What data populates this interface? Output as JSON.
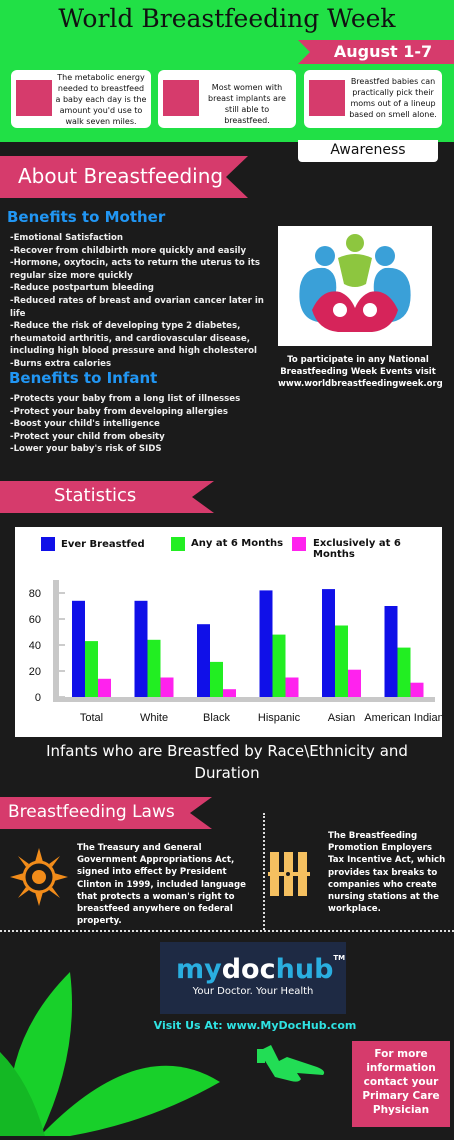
{
  "header": {
    "title": "World Breastfeeding Week",
    "date": "August 1-7"
  },
  "facts": [
    {
      "text": "The metabolic energy needed to breastfeed a baby each day is the amount you'd use to walk seven miles."
    },
    {
      "text": "Most women with breast implants are still able to breastfeed."
    },
    {
      "text": "Breastfed babies can practically pick their moms out of a lineup based on smell alone."
    }
  ],
  "awareness": "Awareness",
  "about": {
    "heading": "About Breastfeeding",
    "mother_heading": "Benefits to Mother",
    "mother_items": [
      "-Emotional Satisfaction",
      "-Recover from childbirth more quickly and easily",
      "-Hormone, oxytocin, acts to return the uterus to its regular size more quickly",
      "-Reduce postpartum bleeding",
      "-Reduced rates of breast and ovarian cancer later in life",
      "-Reduce the risk of developing type 2 diabetes, rheumatoid arthritis, and cardiovascular disease, including high blood pressure and high cholesterol",
      "-Burns extra calories"
    ],
    "infant_heading": "Benefits to Infant",
    "infant_items": [
      "-Protects your baby from a long list of illnesses",
      "-Protect your baby from developing allergies",
      "-Boost your child's intelligence",
      "-Protect your child from obesity",
      "-Lower your baby's risk of SIDS"
    ],
    "participate": "To participate in any National Breastfeeding Week Events visit www.worldbreastfeedingweek.org"
  },
  "statistics": {
    "heading": "Statistics",
    "caption": "Infants who are Breastfed by Race\\Ethnicity and Duration"
  },
  "chart_data": {
    "type": "bar",
    "categories": [
      "Total",
      "White",
      "Black",
      "Hispanic",
      "Asian",
      "American Indian"
    ],
    "series": [
      {
        "name": "Ever Breastfed",
        "color": "#1010e8",
        "values": [
          74,
          74,
          56,
          82,
          83,
          70
        ]
      },
      {
        "name": "Any at 6 Months",
        "color": "#22ee22",
        "values": [
          43,
          44,
          27,
          48,
          55,
          38
        ]
      },
      {
        "name": "Exclusively at 6 Months",
        "color": "#ff22ee",
        "values": [
          14,
          15,
          6,
          15,
          21,
          11
        ]
      }
    ],
    "yticks": [
      "0",
      "20",
      "40",
      "60",
      "80"
    ],
    "ylim": [
      0,
      90
    ],
    "legend": "top"
  },
  "laws": {
    "heading": "Breastfeeding Laws",
    "law1": "The Treasury and General Government Appropriations Act, signed into effect by President Clinton in 1999, included language that protects a woman's right to breastfeed anywhere on federal property.",
    "law2": "The Breastfeeding Promotion Employers Tax Incentive Act, which provides tax breaks to companies who create nursing stations at the workplace."
  },
  "footer": {
    "brand_my": "my",
    "brand_doc": "doc",
    "brand_hub": "hub",
    "brand_tm": "TM",
    "tagline": "Your Doctor. Your Health",
    "visit": "Visit Us At: www.MyDocHub.com",
    "more": "For more information contact your Primary Care Physician"
  }
}
